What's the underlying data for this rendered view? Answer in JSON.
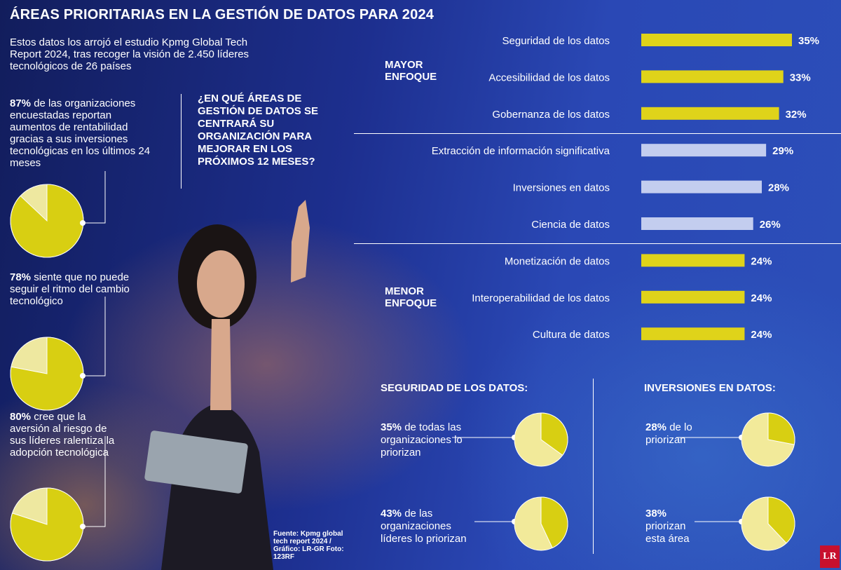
{
  "title": "ÁREAS PRIORITARIAS EN LA GESTIÓN DE DATOS PARA 2024",
  "intro": "Estos datos los arrojó el estudio Kpmg Global Tech Report 2024, tras recoger la visión de 2.450 líderes tecnológicos de 26 países",
  "stats": [
    {
      "bold": "87%",
      "text": " de las organizaciones encuestadas reportan aumentos de rentabilidad gracias a sus inversiones tecnológicas en los últimos 24 meses"
    },
    {
      "bold": "78%",
      "text": " siente que no puede seguir el ritmo del cambio tecnológico"
    },
    {
      "bold": "80%",
      "text": " cree que la aversión al riesgo de sus líderes ralentiza la adopción tecnológica"
    }
  ],
  "question": "¿EN QUÉ ÁREAS DE GESTIÓN DE DATOS SE CENTRARÁ SU ORGANIZACIÓN PARA MEJORAR EN LOS PRÓXIMOS 12 MESES?",
  "groups": {
    "top": "MAYOR ENFOQUE",
    "bottom": "MENOR ENFOQUE"
  },
  "sections": {
    "security": {
      "title": "SEGURIDAD DE LOS DATOS:",
      "items": [
        {
          "bold": "35%",
          "text": " de todas las organizaciones lo priorizan"
        },
        {
          "bold": "43%",
          "text": " de las organizaciones líderes lo priorizan"
        }
      ]
    },
    "investment": {
      "title": "INVERSIONES EN DATOS:",
      "items": [
        {
          "bold": "28%",
          "text": " de lo priorizan"
        },
        {
          "bold": "38%",
          "text": " priorizan esta área"
        }
      ]
    }
  },
  "source": "Fuente: Kpmg global tech report 2024 / Gráfico: LR-GR Foto: 123RF",
  "logo": "LR",
  "colors": {
    "yellow": "#dfd31a",
    "lavender": "#c3cdef",
    "pie_light": "#f2ea9a",
    "pie_dark": "#d8cf12"
  },
  "chart_data": [
    {
      "type": "bar",
      "categories": [
        "Seguridad de los datos",
        "Accesibilidad de los datos",
        "Gobernanza de los datos",
        "Extracción de información significativa",
        "Inversiones en datos",
        "Ciencia de datos",
        "Monetización de datos",
        "Interoperabilidad de los datos",
        "Cultura de datos"
      ],
      "values": [
        35,
        33,
        32,
        29,
        28,
        26,
        24,
        24,
        24
      ],
      "labels": [
        "35%",
        "33%",
        "32%",
        "29%",
        "28%",
        "26%",
        "24%",
        "24%",
        "24%"
      ],
      "colors": [
        "#dfd31a",
        "#dfd31a",
        "#dfd31a",
        "#c3cdef",
        "#c3cdef",
        "#c3cdef",
        "#dfd31a",
        "#dfd31a",
        "#dfd31a"
      ],
      "xlim": [
        0,
        35
      ]
    },
    {
      "type": "pie",
      "values": [
        87,
        13
      ]
    },
    {
      "type": "pie",
      "values": [
        78,
        22
      ]
    },
    {
      "type": "pie",
      "values": [
        80,
        20
      ]
    },
    {
      "type": "pie",
      "values": [
        35,
        65
      ]
    },
    {
      "type": "pie",
      "values": [
        43,
        57
      ]
    },
    {
      "type": "pie",
      "values": [
        28,
        72
      ]
    },
    {
      "type": "pie",
      "values": [
        38,
        62
      ]
    }
  ]
}
